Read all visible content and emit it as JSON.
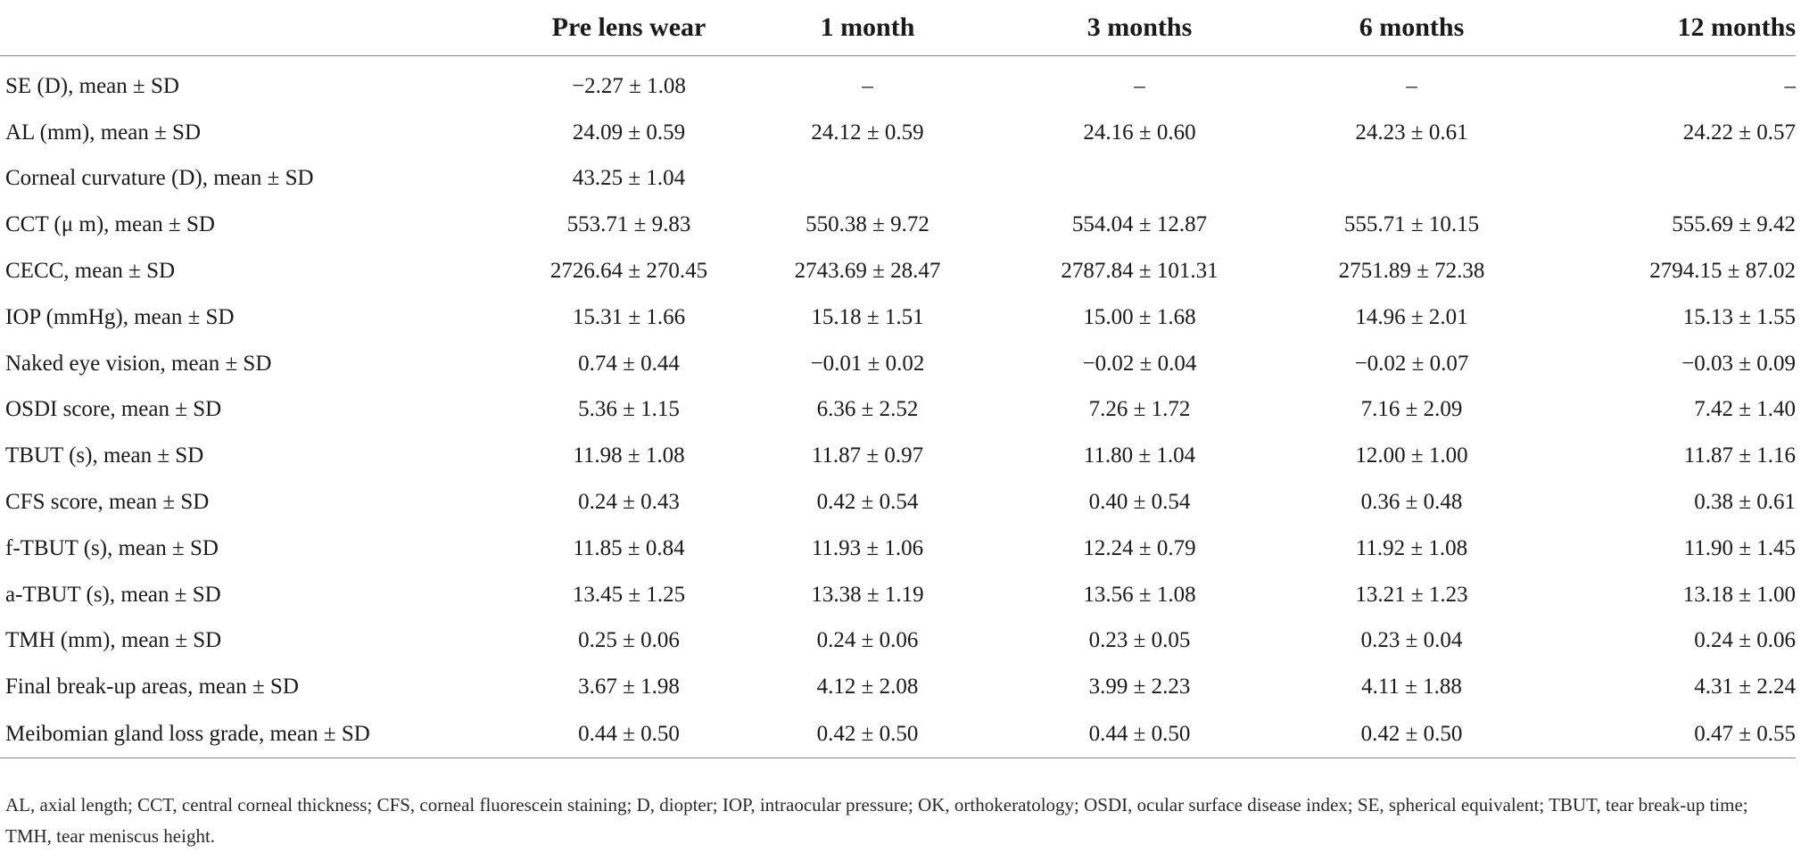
{
  "table": {
    "columns": [
      "",
      "Pre lens wear",
      "1 month",
      "3 months",
      "6 months",
      "12 months"
    ],
    "rows": [
      {
        "label": "SE (D), mean ± SD",
        "values": [
          "−2.27 ± 1.08",
          "–",
          "–",
          "–",
          "–"
        ]
      },
      {
        "label": "AL (mm), mean ± SD",
        "values": [
          "24.09 ± 0.59",
          "24.12 ± 0.59",
          "24.16 ± 0.60",
          "24.23 ± 0.61",
          "24.22 ± 0.57"
        ]
      },
      {
        "label": "Corneal curvature (D), mean ± SD",
        "values": [
          "43.25 ± 1.04",
          "",
          "",
          "",
          ""
        ]
      },
      {
        "label": "CCT (μ m), mean ± SD",
        "values": [
          "553.71 ± 9.83",
          "550.38 ± 9.72",
          "554.04 ± 12.87",
          "555.71 ± 10.15",
          "555.69 ± 9.42"
        ]
      },
      {
        "label": "CECC, mean ± SD",
        "values": [
          "2726.64 ± 270.45",
          "2743.69 ± 28.47",
          "2787.84 ± 101.31",
          "2751.89 ± 72.38",
          "2794.15 ± 87.02"
        ]
      },
      {
        "label": "IOP (mmHg), mean ± SD",
        "values": [
          "15.31 ± 1.66",
          "15.18 ± 1.51",
          "15.00 ± 1.68",
          "14.96 ± 2.01",
          "15.13 ± 1.55"
        ]
      },
      {
        "label": "Naked eye vision, mean ± SD",
        "values": [
          "0.74 ± 0.44",
          "−0.01 ± 0.02",
          "−0.02 ± 0.04",
          "−0.02 ± 0.07",
          "−0.03 ± 0.09"
        ]
      },
      {
        "label": "OSDI score, mean ± SD",
        "values": [
          "5.36 ± 1.15",
          "6.36 ± 2.52",
          "7.26 ± 1.72",
          "7.16 ± 2.09",
          "7.42 ± 1.40"
        ]
      },
      {
        "label": "TBUT (s), mean ± SD",
        "values": [
          "11.98 ± 1.08",
          "11.87 ± 0.97",
          "11.80 ± 1.04",
          "12.00 ± 1.00",
          "11.87 ± 1.16"
        ]
      },
      {
        "label": "CFS score, mean ± SD",
        "values": [
          "0.24 ± 0.43",
          "0.42 ± 0.54",
          "0.40 ± 0.54",
          "0.36 ± 0.48",
          "0.38 ± 0.61"
        ]
      },
      {
        "label": "f-TBUT (s), mean ± SD",
        "values": [
          "11.85 ± 0.84",
          "11.93 ± 1.06",
          "12.24 ± 0.79",
          "11.92 ± 1.08",
          "11.90 ± 1.45"
        ]
      },
      {
        "label": "a-TBUT (s), mean ± SD",
        "values": [
          "13.45 ± 1.25",
          "13.38 ± 1.19",
          "13.56 ± 1.08",
          "13.21 ± 1.23",
          "13.18 ± 1.00"
        ]
      },
      {
        "label": "TMH (mm), mean ± SD",
        "values": [
          "0.25 ± 0.06",
          "0.24 ± 0.06",
          "0.23 ± 0.05",
          "0.23 ± 0.04",
          "0.24 ± 0.06"
        ]
      },
      {
        "label": "Final break-up areas, mean ± SD",
        "values": [
          "3.67 ± 1.98",
          "4.12 ± 2.08",
          "3.99 ± 2.23",
          "4.11 ± 1.88",
          "4.31 ± 2.24"
        ]
      },
      {
        "label": "Meibomian gland loss grade, mean ± SD",
        "values": [
          "0.44 ± 0.50",
          "0.42 ± 0.50",
          "0.44 ± 0.50",
          "0.42 ± 0.50",
          "0.47 ± 0.55"
        ]
      }
    ]
  },
  "footnote": "AL, axial length; CCT, central corneal thickness; CFS, corneal fluorescein staining; D, diopter; IOP, intraocular pressure; OK, orthokeratology; OSDI, ocular surface disease index; SE, spherical equivalent; TBUT, tear break-up time; TMH, tear meniscus height."
}
